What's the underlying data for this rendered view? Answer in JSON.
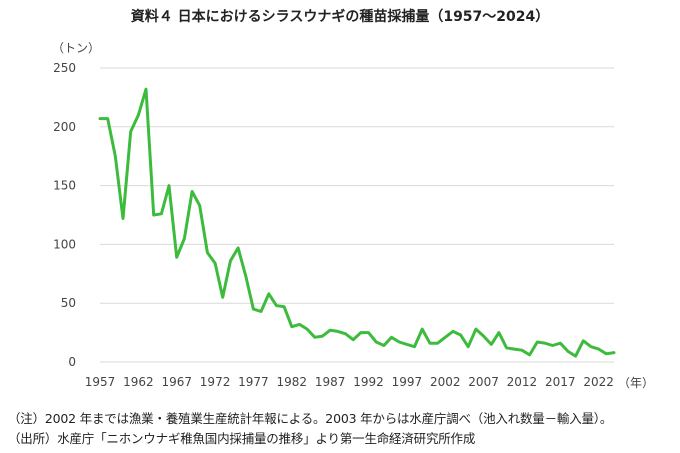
{
  "chart_data": {
    "type": "line",
    "title": "資料４ 日本におけるシラスウナギの種苗採捕量（1957～2024）",
    "ylabel": "（トン）",
    "xlabel": "（年）",
    "ylim": [
      0,
      250
    ],
    "xlim": [
      1957,
      2024
    ],
    "yticks": [
      0,
      50,
      100,
      150,
      200,
      250
    ],
    "xticks": [
      1957,
      1962,
      1967,
      1972,
      1977,
      1982,
      1987,
      1992,
      1997,
      2002,
      2007,
      2012,
      2017,
      2022
    ],
    "grid": "horizontal",
    "line_color": "#3dbb3d",
    "series": [
      {
        "name": "",
        "x": [
          1957,
          1958,
          1959,
          1960,
          1961,
          1962,
          1963,
          1964,
          1965,
          1966,
          1967,
          1968,
          1969,
          1970,
          1971,
          1972,
          1973,
          1974,
          1975,
          1976,
          1977,
          1978,
          1979,
          1980,
          1981,
          1982,
          1983,
          1984,
          1985,
          1986,
          1987,
          1988,
          1989,
          1990,
          1991,
          1992,
          1993,
          1994,
          1995,
          1996,
          1997,
          1998,
          1999,
          2000,
          2001,
          2002,
          2003,
          2004,
          2005,
          2006,
          2007,
          2008,
          2009,
          2010,
          2011,
          2012,
          2013,
          2014,
          2015,
          2016,
          2017,
          2018,
          2019,
          2020,
          2021,
          2022,
          2023,
          2024
        ],
        "values": [
          207,
          207,
          175,
          122,
          196,
          210,
          232,
          125,
          126,
          150,
          89,
          105,
          145,
          133,
          93,
          84,
          55,
          86,
          97,
          73,
          45,
          43,
          58,
          48,
          47,
          30,
          32,
          28,
          21,
          22,
          27,
          26,
          24,
          19,
          25,
          25,
          17,
          14,
          21,
          17,
          15,
          13,
          28,
          16,
          16,
          21,
          26,
          23,
          13,
          28,
          22,
          15,
          25,
          12,
          11,
          10,
          6,
          17,
          16,
          14,
          16,
          9,
          5,
          18,
          13,
          11,
          7,
          8
        ]
      }
    ]
  },
  "notes": {
    "note1": "（注）2002 年までは漁業・養殖業生産統計年報による。2003 年からは水産庁調べ（池入れ数量－輸入量）。",
    "note2": "（出所）水産庁「ニホンウナギ稚魚国内採捕量の推移」より第一生命経済研究所作成"
  }
}
